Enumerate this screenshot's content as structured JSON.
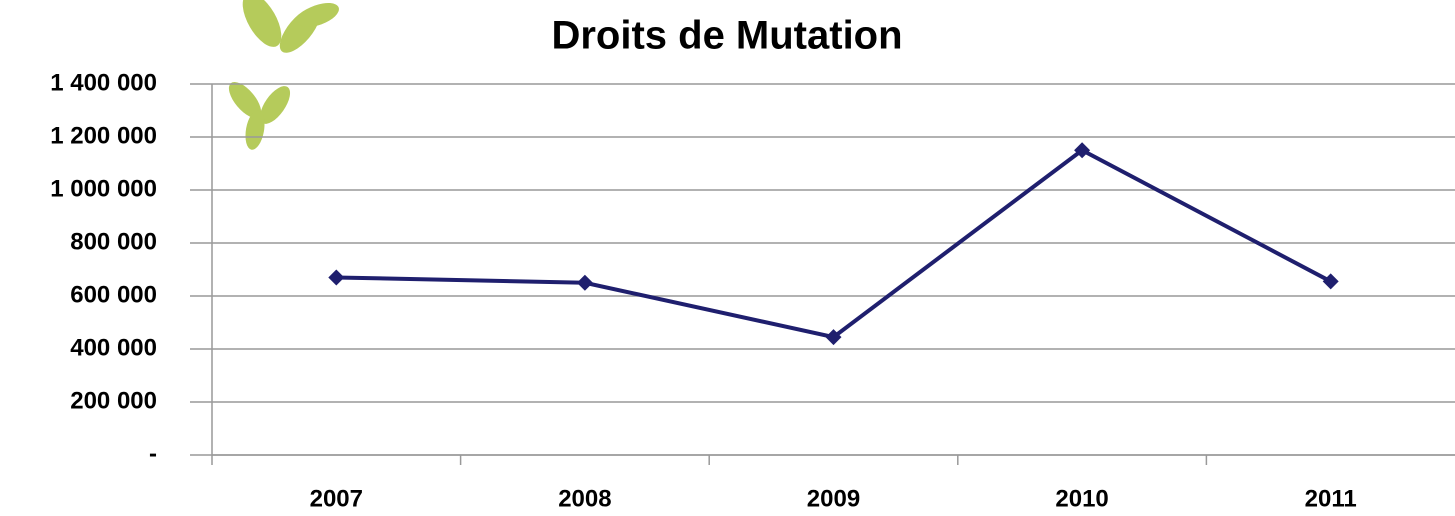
{
  "chart_data": {
    "type": "line",
    "title": "Droits de Mutation",
    "categories": [
      "2007",
      "2008",
      "2009",
      "2010",
      "2011"
    ],
    "series": [
      {
        "name": "Droits de Mutation",
        "color": "#1f1f6e",
        "values": [
          670000,
          650000,
          445000,
          1150000,
          655000
        ]
      }
    ],
    "ylim": [
      0,
      1400000
    ],
    "yticks": [
      {
        "value": 0,
        "label": "-"
      },
      {
        "value": 200000,
        "label": "200 000"
      },
      {
        "value": 400000,
        "label": "400 000"
      },
      {
        "value": 600000,
        "label": "600 000"
      },
      {
        "value": 800000,
        "label": "800 000"
      },
      {
        "value": 1000000,
        "label": "1 000 000"
      },
      {
        "value": 1200000,
        "label": "1 200 000"
      },
      {
        "value": 1400000,
        "label": "1 400 000"
      }
    ],
    "grid": true
  }
}
